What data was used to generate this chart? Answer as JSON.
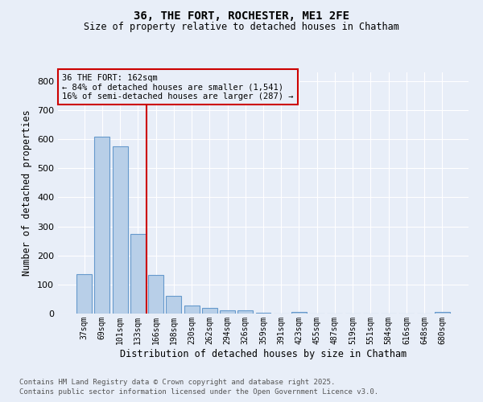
{
  "title1": "36, THE FORT, ROCHESTER, ME1 2FE",
  "title2": "Size of property relative to detached houses in Chatham",
  "xlabel": "Distribution of detached houses by size in Chatham",
  "ylabel": "Number of detached properties",
  "bar_labels": [
    "37sqm",
    "69sqm",
    "101sqm",
    "133sqm",
    "166sqm",
    "198sqm",
    "230sqm",
    "262sqm",
    "294sqm",
    "326sqm",
    "359sqm",
    "391sqm",
    "423sqm",
    "455sqm",
    "487sqm",
    "519sqm",
    "551sqm",
    "584sqm",
    "616sqm",
    "648sqm",
    "680sqm"
  ],
  "bar_values": [
    135,
    610,
    575,
    275,
    133,
    60,
    27,
    18,
    10,
    12,
    2,
    0,
    5,
    0,
    0,
    0,
    0,
    0,
    0,
    0,
    5
  ],
  "bar_color": "#b8cfe8",
  "bar_edge_color": "#6699cc",
  "vline_x": 3.5,
  "vline_color": "#cc0000",
  "annotation_title": "36 THE FORT: 162sqm",
  "annotation_line1": "← 84% of detached houses are smaller (1,541)",
  "annotation_line2": "16% of semi-detached houses are larger (287) →",
  "annotation_box_edgecolor": "#cc0000",
  "ylim": [
    0,
    830
  ],
  "yticks": [
    0,
    100,
    200,
    300,
    400,
    500,
    600,
    700,
    800
  ],
  "background_color": "#e8eef8",
  "grid_color": "#ffffff",
  "footer1": "Contains HM Land Registry data © Crown copyright and database right 2025.",
  "footer2": "Contains public sector information licensed under the Open Government Licence v3.0."
}
